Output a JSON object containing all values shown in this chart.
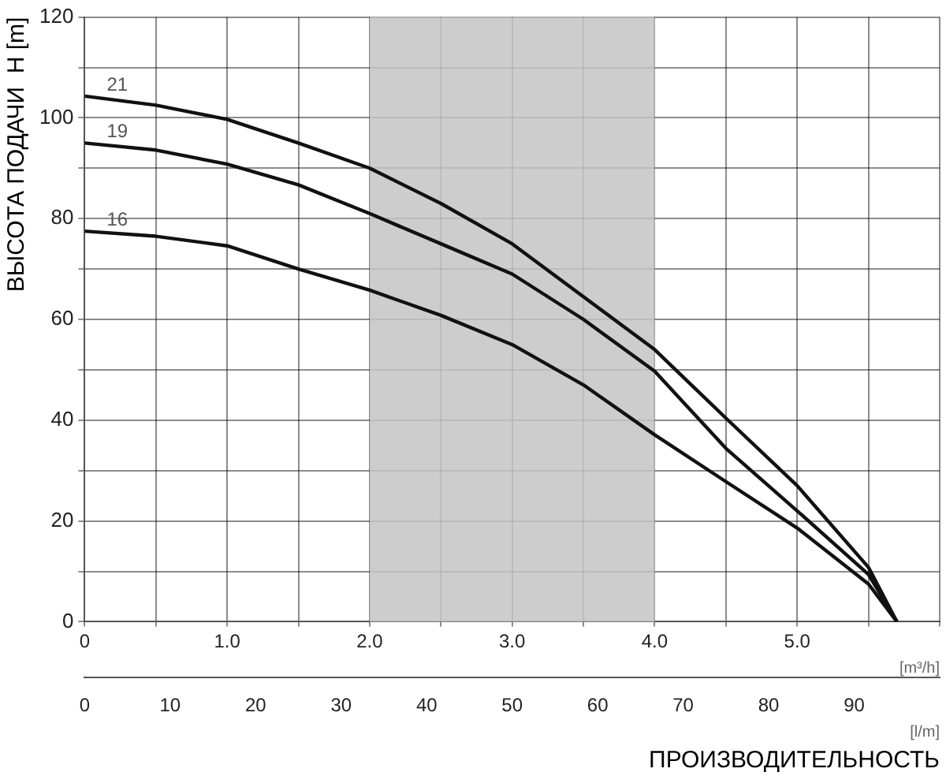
{
  "chart_data": {
    "type": "line",
    "ylabel": "ВЫСОТА ПОДАЧИ  H [m]",
    "xlabel": "[m³/h]",
    "x2label": "[l/m]",
    "annotations": [
      "ПРОИЗВОДИТЕЛЬНОСТЬ"
    ],
    "x": [
      0,
      0.5,
      1.0,
      1.5,
      2.0,
      2.5,
      3.0,
      3.5,
      4.0,
      4.5,
      5.0,
      5.5,
      5.7
    ],
    "series": [
      {
        "name": "21",
        "color": "#111111",
        "values": [
          104.3,
          102.5,
          99.7,
          95,
          90,
          83,
          75,
          64.5,
          54,
          40.4,
          27,
          10.8,
          0
        ]
      },
      {
        "name": "19",
        "color": "#111111",
        "values": [
          95,
          93.6,
          90.8,
          86.7,
          81,
          75,
          69,
          60,
          49.7,
          34.4,
          22,
          9.4,
          0
        ]
      },
      {
        "name": "16",
        "color": "#111111",
        "values": [
          77.5,
          76.5,
          74.6,
          70,
          65.8,
          60.8,
          55,
          47,
          37.1,
          27.8,
          18.6,
          7.5,
          0
        ]
      }
    ],
    "xlim": [
      0,
      6
    ],
    "xticks": [
      0,
      {
        "value": 0.5,
        "label": null
      },
      {
        "value": 1,
        "label": "1.0"
      },
      {
        "value": 1.5,
        "label": null
      },
      {
        "value": 2,
        "label": "2.0"
      },
      {
        "value": 2.5,
        "label": null
      },
      {
        "value": 3,
        "label": "3.0"
      },
      {
        "value": 3.5,
        "label": null
      },
      {
        "value": 4,
        "label": "4.0"
      },
      {
        "value": 4.5,
        "label": null
      },
      {
        "value": 5,
        "label": "5.0"
      },
      {
        "value": 5.5,
        "label": null
      },
      {
        "value": 6,
        "label": null
      }
    ],
    "x2lim": [
      0,
      100
    ],
    "x2ticks": [
      0,
      10,
      20,
      30,
      40,
      50,
      60,
      70,
      80,
      90
    ],
    "ylim": [
      0,
      120
    ],
    "yticks": [
      0,
      {
        "value": 10,
        "label": null
      },
      20,
      {
        "value": 30,
        "label": null
      },
      40,
      {
        "value": 50,
        "label": null
      },
      60,
      {
        "value": 70,
        "label": null
      },
      80,
      {
        "value": 90,
        "label": null
      },
      100,
      {
        "value": 110,
        "label": null
      },
      120
    ],
    "bands": [
      {
        "axis": "x",
        "from": 2,
        "to": 4,
        "color": "#c4c4c4"
      }
    ],
    "grid": true,
    "legend": false,
    "marker": "none",
    "line_style": "solid"
  }
}
